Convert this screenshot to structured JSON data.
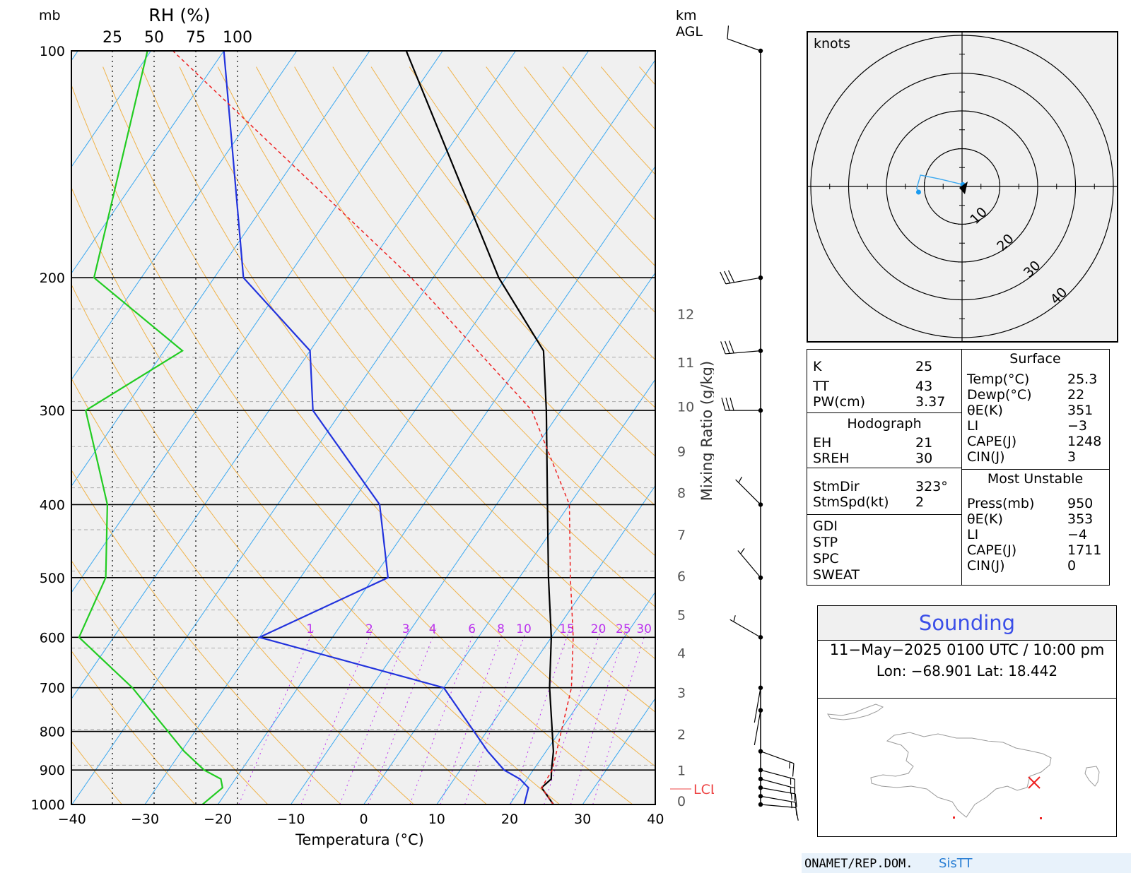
{
  "chart_data": {
    "type": "skew-t",
    "pressure_axis": {
      "label": "mb",
      "ticks": [
        100,
        200,
        300,
        400,
        500,
        600,
        700,
        800,
        900,
        1000
      ]
    },
    "temperature_axis": {
      "label": "Temperatura (°C)",
      "ticks": [
        -40,
        -30,
        -20,
        -10,
        0,
        10,
        20,
        30,
        40
      ]
    },
    "rh_axis": {
      "label": "RH (%)",
      "ticks": [
        "25",
        "50",
        "75",
        "100"
      ]
    },
    "height_axis": {
      "label": "km AGL",
      "ticks": [
        "0",
        "1",
        "2",
        "3",
        "4",
        "5",
        "6",
        "7",
        "8",
        "9",
        "10",
        "11",
        "12"
      ]
    },
    "mixing_ratio_axis": {
      "label": "Mixing Ratio (g/kg)",
      "ticks": [
        "1",
        "2",
        "3",
        "4",
        "6",
        "8",
        "10",
        "15",
        "20",
        "25",
        "30"
      ]
    },
    "lcl_label": "LCL",
    "colors": {
      "temperature": "#000000",
      "dewpoint": "#2233dd",
      "rh": "#22cc22",
      "parcel": "#ee2222",
      "isotherm": "#3aa8f0",
      "dry_adiabat": "#f0b34a",
      "mixing_ratio": "#bb33ee"
    },
    "series": [
      {
        "name": "Temperature",
        "points": [
          [
            1000,
            26
          ],
          [
            950,
            22.8
          ],
          [
            925,
            23.3
          ],
          [
            900,
            22.5
          ],
          [
            850,
            21
          ],
          [
            700,
            14.5
          ],
          [
            600,
            10
          ],
          [
            500,
            4
          ],
          [
            400,
            -3
          ],
          [
            300,
            -12
          ],
          [
            250,
            -18
          ],
          [
            200,
            -31
          ],
          [
            100,
            -65
          ]
        ]
      },
      {
        "name": "Dewpoint",
        "points": [
          [
            1000,
            22
          ],
          [
            950,
            21
          ],
          [
            925,
            19
          ],
          [
            900,
            16
          ],
          [
            850,
            12
          ],
          [
            700,
            0
          ],
          [
            600,
            -30
          ],
          [
            500,
            -18
          ],
          [
            400,
            -26
          ],
          [
            300,
            -44
          ],
          [
            250,
            -50
          ],
          [
            200,
            -66
          ],
          [
            100,
            -90
          ]
        ]
      },
      {
        "name": "RH",
        "points": [
          [
            1000,
            79
          ],
          [
            950,
            91
          ],
          [
            925,
            90
          ],
          [
            900,
            80
          ],
          [
            850,
            68
          ],
          [
            700,
            37
          ],
          [
            600,
            5
          ],
          [
            500,
            21
          ],
          [
            400,
            22
          ],
          [
            300,
            9
          ],
          [
            250,
            67
          ],
          [
            200,
            14
          ],
          [
            100,
            46
          ]
        ]
      },
      {
        "name": "Parcel",
        "points": [
          [
            1000,
            26
          ],
          [
            950,
            22.8
          ],
          [
            900,
            22.6
          ],
          [
            700,
            17.5
          ],
          [
            600,
            13
          ],
          [
            500,
            7
          ],
          [
            400,
            0
          ],
          [
            300,
            -14
          ],
          [
            200,
            -43
          ],
          [
            100,
            -97
          ]
        ]
      }
    ],
    "wind": {
      "units": "knots",
      "barbs": [
        {
          "p": 1000,
          "dir": 95,
          "spd": 10
        },
        {
          "p": 975,
          "dir": 100,
          "spd": 15
        },
        {
          "p": 950,
          "dir": 100,
          "spd": 15
        },
        {
          "p": 925,
          "dir": 105,
          "spd": 15
        },
        {
          "p": 900,
          "dir": 105,
          "spd": 15
        },
        {
          "p": 850,
          "dir": 110,
          "spd": 15
        },
        {
          "p": 750,
          "dir": 190,
          "spd": 1
        },
        {
          "p": 700,
          "dir": 190,
          "spd": 1
        },
        {
          "p": 600,
          "dir": 300,
          "spd": 5
        },
        {
          "p": 500,
          "dir": 320,
          "spd": 5
        },
        {
          "p": 400,
          "dir": 315,
          "spd": 5
        },
        {
          "p": 300,
          "dir": 270,
          "spd": 30
        },
        {
          "p": 250,
          "dir": 265,
          "spd": 30
        },
        {
          "p": 200,
          "dir": 260,
          "spd": 30
        },
        {
          "p": 100,
          "dir": 290,
          "spd": 10
        }
      ]
    },
    "hodograph": {
      "units": "knots",
      "ring_labels": [
        "10",
        "20",
        "30",
        "40"
      ],
      "points": [
        [
          0.2,
          0.5
        ],
        [
          -6,
          2
        ],
        [
          -11,
          3
        ],
        [
          -12,
          -0.5
        ],
        [
          -11.5,
          -1.5
        ]
      ]
    }
  },
  "indices": {
    "basic": [
      {
        "k": "K",
        "v": "25"
      },
      {
        "k": "TT",
        "v": "43"
      },
      {
        "k": "PW(cm)",
        "v": "3.37"
      }
    ],
    "hodograph": {
      "title": "Hodograph",
      "rows": [
        {
          "k": "EH",
          "v": "21"
        },
        {
          "k": "SREH",
          "v": "30"
        }
      ]
    },
    "storm": [
      {
        "k": "StmDir",
        "v": "323°"
      },
      {
        "k": "StmSpd(kt)",
        "v": "2"
      }
    ],
    "severe": [
      {
        "k": "GDI",
        "v": ""
      },
      {
        "k": "STP",
        "v": ""
      },
      {
        "k": "SPC",
        "v": ""
      },
      {
        "k": "SWEAT",
        "v": ""
      }
    ],
    "surface": {
      "title": "Surface",
      "rows": [
        {
          "k": "Temp(°C)",
          "v": "25.3"
        },
        {
          "k": "Dewp(°C)",
          "v": "22"
        },
        {
          "k": "θE(K)",
          "v": "351"
        },
        {
          "k": "LI",
          "v": "−3"
        },
        {
          "k": "CAPE(J)",
          "v": "1248"
        },
        {
          "k": "CIN(J)",
          "v": "3"
        }
      ]
    },
    "most_unstable": {
      "title": "Most Unstable",
      "rows": [
        {
          "k": "Press(mb)",
          "v": "950"
        },
        {
          "k": "θE(K)",
          "v": "353"
        },
        {
          "k": "LI",
          "v": "−4"
        },
        {
          "k": "CAPE(J)",
          "v": "1711"
        },
        {
          "k": "CIN(J)",
          "v": "0"
        }
      ]
    }
  },
  "sounding": {
    "title": "Sounding",
    "datetime": "11−May−2025 0100  UTC / 10:00 pm",
    "location": "Lon:  −68.901      Lat:  18.442",
    "marker_color": "#ee2222"
  },
  "footer": {
    "org": "ONAMET/REP.DOM.",
    "system": "SisTT"
  }
}
